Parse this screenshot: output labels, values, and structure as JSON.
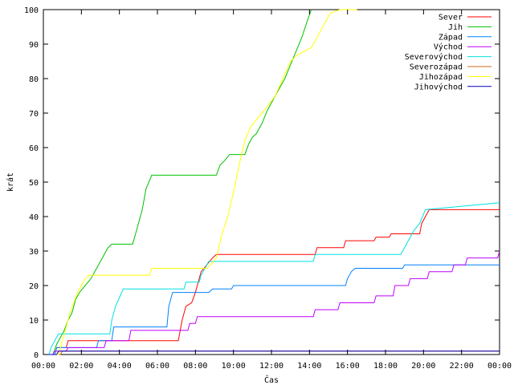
{
  "chart_data": {
    "type": "line",
    "title": "",
    "xlabel": "Čas",
    "ylabel": "krát",
    "xlim": [
      0,
      24
    ],
    "ylim": [
      0,
      100
    ],
    "grid": false,
    "legend_position": "top-right",
    "x_tick_labels": [
      "00:00",
      "02:00",
      "04:00",
      "06:00",
      "08:00",
      "10:00",
      "12:00",
      "14:00",
      "16:00",
      "18:00",
      "20:00",
      "22:00",
      "00:00"
    ],
    "y_tick_labels": [
      "0",
      "10",
      "20",
      "30",
      "40",
      "50",
      "60",
      "70",
      "80",
      "90",
      "100"
    ],
    "series": [
      {
        "name": "Sever",
        "color": "#ff0000",
        "points": [
          [
            0,
            0
          ],
          [
            0.6,
            0
          ],
          [
            0.7,
            2
          ],
          [
            1.2,
            2
          ],
          [
            1.3,
            4
          ],
          [
            7.1,
            4
          ],
          [
            7.3,
            10
          ],
          [
            7.5,
            14
          ],
          [
            7.8,
            15
          ],
          [
            8.0,
            18
          ],
          [
            8.3,
            24
          ],
          [
            8.6,
            26
          ],
          [
            8.9,
            28
          ],
          [
            9.1,
            29
          ],
          [
            14.3,
            29
          ],
          [
            14.4,
            31
          ],
          [
            15.8,
            31
          ],
          [
            15.9,
            33
          ],
          [
            17.4,
            33
          ],
          [
            17.5,
            34
          ],
          [
            18.2,
            34
          ],
          [
            18.3,
            35
          ],
          [
            19.8,
            35
          ],
          [
            19.9,
            38
          ],
          [
            20.1,
            40
          ],
          [
            20.3,
            42
          ],
          [
            24,
            42
          ]
        ]
      },
      {
        "name": "Jih",
        "color": "#00c000",
        "points": [
          [
            0,
            0
          ],
          [
            0.5,
            0
          ],
          [
            0.7,
            3
          ],
          [
            0.9,
            5
          ],
          [
            1.1,
            7
          ],
          [
            1.3,
            10
          ],
          [
            1.5,
            12
          ],
          [
            1.7,
            16
          ],
          [
            1.9,
            18
          ],
          [
            2.2,
            20
          ],
          [
            2.5,
            22
          ],
          [
            2.8,
            25
          ],
          [
            3.1,
            28
          ],
          [
            3.4,
            31
          ],
          [
            3.6,
            32
          ],
          [
            4.7,
            32
          ],
          [
            4.9,
            36
          ],
          [
            5.2,
            42
          ],
          [
            5.4,
            48
          ],
          [
            5.7,
            52
          ],
          [
            9.1,
            52
          ],
          [
            9.3,
            55
          ],
          [
            9.5,
            56
          ],
          [
            9.8,
            58
          ],
          [
            10.6,
            58
          ],
          [
            10.8,
            61
          ],
          [
            11.0,
            63
          ],
          [
            11.2,
            64
          ],
          [
            11.5,
            67
          ],
          [
            11.8,
            71
          ],
          [
            12.1,
            74
          ],
          [
            12.4,
            77
          ],
          [
            12.7,
            80
          ],
          [
            13.0,
            84
          ],
          [
            13.3,
            88
          ],
          [
            13.6,
            92
          ],
          [
            13.9,
            97
          ],
          [
            14.1,
            100
          ]
        ]
      },
      {
        "name": "Západ",
        "color": "#0080ff",
        "points": [
          [
            0,
            0
          ],
          [
            0.6,
            0
          ],
          [
            0.7,
            2
          ],
          [
            2.8,
            2
          ],
          [
            2.9,
            4
          ],
          [
            3.6,
            4
          ],
          [
            3.7,
            8
          ],
          [
            6.5,
            8
          ],
          [
            6.6,
            14
          ],
          [
            6.8,
            18
          ],
          [
            8.7,
            18
          ],
          [
            8.9,
            19
          ],
          [
            9.9,
            19
          ],
          [
            10.0,
            20
          ],
          [
            15.9,
            20
          ],
          [
            16.0,
            22
          ],
          [
            16.2,
            24
          ],
          [
            16.4,
            25
          ],
          [
            18.9,
            25
          ],
          [
            19.0,
            26
          ],
          [
            24,
            26
          ]
        ]
      },
      {
        "name": "Východ",
        "color": "#c000ff",
        "points": [
          [
            0,
            0
          ],
          [
            0.5,
            0
          ],
          [
            0.6,
            1
          ],
          [
            1.2,
            1
          ],
          [
            1.3,
            2
          ],
          [
            3.2,
            2
          ],
          [
            3.3,
            4
          ],
          [
            4.5,
            4
          ],
          [
            4.6,
            7
          ],
          [
            7.6,
            7
          ],
          [
            7.7,
            9
          ],
          [
            8.0,
            9
          ],
          [
            8.1,
            11
          ],
          [
            14.2,
            11
          ],
          [
            14.3,
            13
          ],
          [
            15.5,
            13
          ],
          [
            15.6,
            15
          ],
          [
            17.4,
            15
          ],
          [
            17.5,
            17
          ],
          [
            18.4,
            17
          ],
          [
            18.5,
            20
          ],
          [
            19.2,
            20
          ],
          [
            19.3,
            22
          ],
          [
            20.2,
            22
          ],
          [
            20.3,
            24
          ],
          [
            21.5,
            24
          ],
          [
            21.6,
            26
          ],
          [
            22.2,
            26
          ],
          [
            22.3,
            28
          ],
          [
            23.9,
            28
          ],
          [
            24,
            30
          ]
        ]
      },
      {
        "name": "Severovýchod",
        "color": "#00e0e0",
        "points": [
          [
            0,
            0
          ],
          [
            0.3,
            0
          ],
          [
            0.4,
            2
          ],
          [
            0.6,
            4
          ],
          [
            0.8,
            6
          ],
          [
            3.5,
            6
          ],
          [
            3.6,
            10
          ],
          [
            3.8,
            14
          ],
          [
            4.2,
            19
          ],
          [
            7.4,
            19
          ],
          [
            7.5,
            21
          ],
          [
            8.2,
            21
          ],
          [
            8.3,
            23
          ],
          [
            8.5,
            25
          ],
          [
            8.7,
            27
          ],
          [
            14.2,
            27
          ],
          [
            14.3,
            29
          ],
          [
            18.8,
            29
          ],
          [
            19.0,
            31
          ],
          [
            19.2,
            33
          ],
          [
            19.5,
            36
          ],
          [
            19.8,
            38
          ],
          [
            20.1,
            42
          ],
          [
            24,
            44
          ]
        ]
      },
      {
        "name": "Severozápad",
        "color": "#d2691e",
        "points": [
          [
            0,
            0
          ],
          [
            0.9,
            0
          ],
          [
            1.0,
            1
          ],
          [
            24,
            1
          ]
        ]
      },
      {
        "name": "Jihozápad",
        "color": "#ffff00",
        "points": [
          [
            0,
            0
          ],
          [
            0.8,
            0
          ],
          [
            1.0,
            4
          ],
          [
            1.2,
            8
          ],
          [
            1.4,
            12
          ],
          [
            1.6,
            15
          ],
          [
            1.8,
            18
          ],
          [
            2.0,
            20
          ],
          [
            2.2,
            22
          ],
          [
            2.4,
            23
          ],
          [
            5.6,
            23
          ],
          [
            5.7,
            25
          ],
          [
            8.6,
            25
          ],
          [
            8.8,
            26
          ],
          [
            9.1,
            28
          ],
          [
            9.4,
            35
          ],
          [
            9.7,
            40
          ],
          [
            10.0,
            47
          ],
          [
            10.3,
            55
          ],
          [
            10.6,
            62
          ],
          [
            10.9,
            66
          ],
          [
            11.2,
            68
          ],
          [
            11.5,
            70
          ],
          [
            11.8,
            72
          ],
          [
            12.2,
            75
          ],
          [
            12.6,
            80
          ],
          [
            13.0,
            85
          ],
          [
            13.4,
            87
          ],
          [
            14.1,
            89
          ],
          [
            14.4,
            92
          ],
          [
            14.8,
            96
          ],
          [
            15.1,
            99
          ],
          [
            15.6,
            100
          ],
          [
            16.5,
            100
          ]
        ]
      },
      {
        "name": "Jihovýchod",
        "color": "#0000c0",
        "points": [
          [
            0,
            0
          ],
          [
            0.7,
            0
          ],
          [
            0.8,
            1
          ],
          [
            24,
            1
          ]
        ]
      }
    ]
  }
}
